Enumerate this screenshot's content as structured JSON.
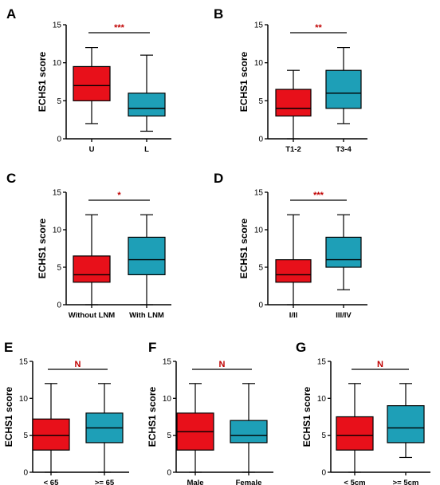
{
  "chart_data": [
    {
      "panel": "A",
      "type": "box",
      "ylabel": "ECHS1 score",
      "ylim": [
        0,
        15
      ],
      "yticks": [
        0,
        5,
        10,
        15
      ],
      "categories": [
        "U",
        "L"
      ],
      "boxes": [
        {
          "min": 2,
          "q1": 5,
          "median": 7,
          "q3": 9.5,
          "max": 12,
          "color": "#e8101a"
        },
        {
          "min": 1,
          "q1": 3,
          "median": 4,
          "q3": 6,
          "max": 11,
          "color": "#1e9fb7"
        }
      ],
      "significance": "***"
    },
    {
      "panel": "B",
      "type": "box",
      "ylabel": "ECHS1 score",
      "ylim": [
        0,
        15
      ],
      "yticks": [
        0,
        5,
        10,
        15
      ],
      "categories": [
        "T1-2",
        "T3-4"
      ],
      "boxes": [
        {
          "min": 0,
          "q1": 3,
          "median": 4,
          "q3": 6.5,
          "max": 9,
          "color": "#e8101a"
        },
        {
          "min": 2,
          "q1": 4,
          "median": 6,
          "q3": 9,
          "max": 12,
          "color": "#1e9fb7"
        }
      ],
      "significance": "**"
    },
    {
      "panel": "C",
      "type": "box",
      "ylabel": "ECHS1 score",
      "ylim": [
        0,
        15
      ],
      "yticks": [
        0,
        5,
        10,
        15
      ],
      "categories": [
        "Without LNM",
        "With LNM"
      ],
      "boxes": [
        {
          "min": 0,
          "q1": 3,
          "median": 4,
          "q3": 6.5,
          "max": 12,
          "color": "#e8101a"
        },
        {
          "min": 0,
          "q1": 4,
          "median": 6,
          "q3": 9,
          "max": 12,
          "color": "#1e9fb7"
        }
      ],
      "significance": "*"
    },
    {
      "panel": "D",
      "type": "box",
      "ylabel": "ECHS1 score",
      "ylim": [
        0,
        15
      ],
      "yticks": [
        0,
        5,
        10,
        15
      ],
      "categories": [
        "I/II",
        "III/IV"
      ],
      "boxes": [
        {
          "min": 0,
          "q1": 3,
          "median": 4,
          "q3": 6,
          "max": 12,
          "color": "#e8101a"
        },
        {
          "min": 2,
          "q1": 5,
          "median": 6,
          "q3": 9,
          "max": 12,
          "color": "#1e9fb7"
        }
      ],
      "significance": "***"
    },
    {
      "panel": "E",
      "type": "box",
      "ylabel": "ECHS1 score",
      "ylim": [
        0,
        15
      ],
      "yticks": [
        0,
        5,
        10,
        15
      ],
      "categories": [
        "< 65",
        ">= 65"
      ],
      "boxes": [
        {
          "min": 0,
          "q1": 3,
          "median": 5,
          "q3": 7.2,
          "max": 12,
          "color": "#e8101a"
        },
        {
          "min": 0,
          "q1": 4,
          "median": 6,
          "q3": 8,
          "max": 12,
          "color": "#1e9fb7"
        }
      ],
      "significance": "N"
    },
    {
      "panel": "F",
      "type": "box",
      "ylabel": "ECHS1 score",
      "ylim": [
        0,
        15
      ],
      "yticks": [
        0,
        5,
        10,
        15
      ],
      "categories": [
        "Male",
        "Female"
      ],
      "boxes": [
        {
          "min": 0,
          "q1": 3,
          "median": 5.5,
          "q3": 8,
          "max": 12,
          "color": "#e8101a"
        },
        {
          "min": 0,
          "q1": 4,
          "median": 5,
          "q3": 7,
          "max": 12,
          "color": "#1e9fb7"
        }
      ],
      "significance": "N"
    },
    {
      "panel": "G",
      "type": "box",
      "ylabel": "ECHS1 score",
      "ylim": [
        0,
        15
      ],
      "yticks": [
        0,
        5,
        10,
        15
      ],
      "categories": [
        "< 5cm",
        ">= 5cm"
      ],
      "boxes": [
        {
          "min": 0,
          "q1": 3,
          "median": 5,
          "q3": 7.5,
          "max": 12,
          "color": "#e8101a"
        },
        {
          "min": 2,
          "q1": 4,
          "median": 6,
          "q3": 9,
          "max": 12,
          "color": "#1e9fb7"
        }
      ],
      "significance": "N"
    }
  ]
}
